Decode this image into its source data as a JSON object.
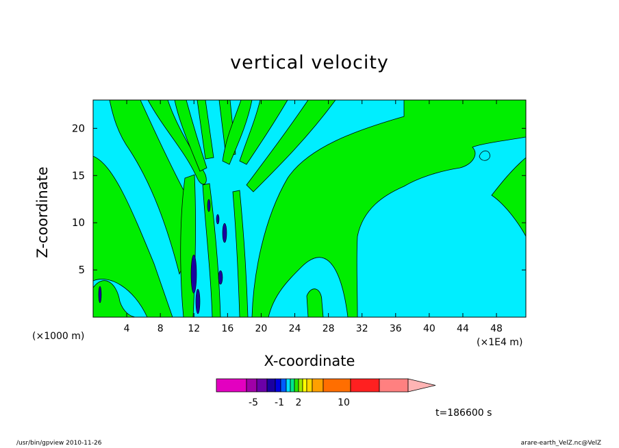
{
  "chart_data": {
    "type": "heatmap",
    "title": "vertical velocity",
    "xlabel": "X-coordinate",
    "ylabel": "Z-coordinate",
    "x_scale_label": "(×1E4 m)",
    "y_scale_label": "(×1000 m)",
    "xlim": [
      0,
      51.5
    ],
    "ylim": [
      0,
      23
    ],
    "x_ticks": [
      4,
      8,
      12,
      16,
      20,
      24,
      28,
      32,
      36,
      40,
      44,
      48
    ],
    "y_ticks": [
      5,
      10,
      15,
      20
    ],
    "time_label": "t=186600 s",
    "colorbar": {
      "colors": [
        "#e300c0",
        "#a000a8",
        "#6a00a8",
        "#1a00a0",
        "#0000e0",
        "#005cff",
        "#00e0ff",
        "#00e68c",
        "#28e600",
        "#a0e600",
        "#ffff00",
        "#ffd600",
        "#ffa000",
        "#ff6e00",
        "#ff2020",
        "#ff8080",
        "#ffb4b4"
      ],
      "tick_labels": [
        {
          "label": "-5",
          "value": -5
        },
        {
          "label": "-1",
          "value": -1
        },
        {
          "label": "2",
          "value": 2
        },
        {
          "label": "10",
          "value": 10
        }
      ]
    },
    "regions_colors": {
      "positive": "#00ee00",
      "negative": "#00eeff"
    }
  },
  "footer": {
    "left": "/usr/bin/gpview   2010-11-26",
    "right": "arare-earth_VelZ.nc@VelZ"
  }
}
